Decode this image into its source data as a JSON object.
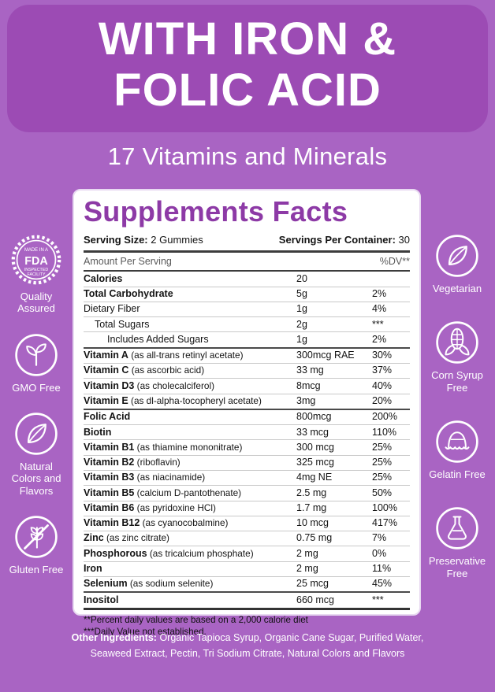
{
  "colors": {
    "background": "#A964C3",
    "header_block": "#9C4BB4",
    "accent_purple": "#8D3AA6"
  },
  "header": {
    "title_line1": "WITH IRON &",
    "title_line2": "FOLIC ACID",
    "subtitle": "17 Vitamins and Minerals"
  },
  "panel": {
    "title": "Supplements Facts",
    "serving": {
      "size_label": "Serving Size:",
      "size_value": "2 Gummies",
      "container_label": "Servings Per Container:",
      "container_value": "30"
    },
    "table": {
      "col_left": "Amount Per Serving",
      "col_right": "%DV**",
      "rows": [
        {
          "name": "Calories",
          "desc": "",
          "amount": "20",
          "dv": "",
          "bold": true,
          "indent": 0
        },
        {
          "name": "Total Carbohydrate",
          "desc": "",
          "amount": "5g",
          "dv": "2%",
          "bold": true,
          "indent": 0
        },
        {
          "name": "Dietary Fiber",
          "desc": "",
          "amount": "1g",
          "dv": "4%",
          "bold": false,
          "indent": 0
        },
        {
          "name": "Total Sugars",
          "desc": "",
          "amount": "2g",
          "dv": "***",
          "bold": false,
          "indent": 1
        },
        {
          "name": "Includes Added Sugars",
          "desc": "",
          "amount": "1g",
          "dv": "2%",
          "bold": false,
          "indent": 2
        },
        {
          "name": "Vitamin A",
          "desc": "(as all-trans retinyl acetate)",
          "amount": "300mcg RAE",
          "dv": "30%",
          "bold": true,
          "indent": 0
        },
        {
          "name": "Vitamin C",
          "desc": "(as ascorbic acid)",
          "amount": "33 mg",
          "dv": "37%",
          "bold": true,
          "indent": 0
        },
        {
          "name": "Vitamin D3",
          "desc": "(as cholecalciferol)",
          "amount": "8mcg",
          "dv": "40%",
          "bold": true,
          "indent": 0
        },
        {
          "name": "Vitamin E",
          "desc": "(as dl-alpha-tocopheryl acetate)",
          "amount": "3mg",
          "dv": "20%",
          "bold": true,
          "indent": 0
        },
        {
          "name": "Folic Acid",
          "desc": "",
          "amount": "800mcg",
          "dv": "200%",
          "bold": true,
          "indent": 0
        },
        {
          "name": "Biotin",
          "desc": "",
          "amount": "33 mcg",
          "dv": "110%",
          "bold": true,
          "indent": 0
        },
        {
          "name": "Vitamin B1",
          "desc": "(as thiamine mononitrate)",
          "amount": "300 mcg",
          "dv": "25%",
          "bold": true,
          "indent": 0
        },
        {
          "name": "Vitamin B2",
          "desc": "(riboflavin)",
          "amount": "325 mcg",
          "dv": "25%",
          "bold": true,
          "indent": 0
        },
        {
          "name": "Vitamin B3",
          "desc": "(as niacinamide)",
          "amount": "4mg NE",
          "dv": "25%",
          "bold": true,
          "indent": 0
        },
        {
          "name": "Vitamin B5",
          "desc": "(calcium D-pantothenate)",
          "amount": "2.5 mg",
          "dv": "50%",
          "bold": true,
          "indent": 0
        },
        {
          "name": "Vitamin B6",
          "desc": "(as pyridoxine HCl)",
          "amount": "1.7 mg",
          "dv": "100%",
          "bold": true,
          "indent": 0
        },
        {
          "name": "Vitamin B12",
          "desc": "(as cyanocobalmine)",
          "amount": "10 mcg",
          "dv": "417%",
          "bold": true,
          "indent": 0
        },
        {
          "name": "Zinc",
          "desc": "(as zinc citrate)",
          "amount": "0.75 mg",
          "dv": "7%",
          "bold": true,
          "indent": 0
        },
        {
          "name": "Phosphorous",
          "desc": "(as tricalcium phosphate)",
          "amount": "2 mg",
          "dv": "0%",
          "bold": true,
          "indent": 0
        },
        {
          "name": "Iron",
          "desc": "",
          "amount": "2 mg",
          "dv": "11%",
          "bold": true,
          "indent": 0
        },
        {
          "name": "Selenium",
          "desc": "(as sodium selenite)",
          "amount": "25 mcg",
          "dv": "45%",
          "bold": true,
          "indent": 0
        },
        {
          "name": "Inositol",
          "desc": "",
          "amount": "660 mcg",
          "dv": "***",
          "bold": true,
          "indent": 0
        }
      ]
    },
    "footnotes": [
      "**Percent daily values are based on a 2,000 calorie diet",
      "***Daily Value not established."
    ]
  },
  "other_ingredients": {
    "label": "Other Ingredients:",
    "text": "Organic Tapioca Syrup, Organic Cane Sugar, Purified Water, Seaweed Extract, Pectin, Tri Sodium Citrate, Natural Colors and Flavors"
  },
  "badges": {
    "left": [
      {
        "icon": "fda-stamp-icon",
        "label": "Quality Assured",
        "stamp": {
          "top": "MADE IN A",
          "center": "FDA",
          "bottom1": "INSPECTED",
          "bottom2": "FACILITY"
        }
      },
      {
        "icon": "sprout-icon",
        "label": "GMO Free"
      },
      {
        "icon": "leaf-icon",
        "label": "Natural Colors and Flavors"
      },
      {
        "icon": "wheat-crossed-icon",
        "label": "Gluten Free"
      }
    ],
    "right": [
      {
        "icon": "leaf-icon",
        "label": "Vegetarian"
      },
      {
        "icon": "corn-icon",
        "label": "Corn Syrup Free"
      },
      {
        "icon": "gelatin-icon",
        "label": "Gelatin Free"
      },
      {
        "icon": "flask-icon",
        "label": "Preservative Free"
      }
    ]
  }
}
